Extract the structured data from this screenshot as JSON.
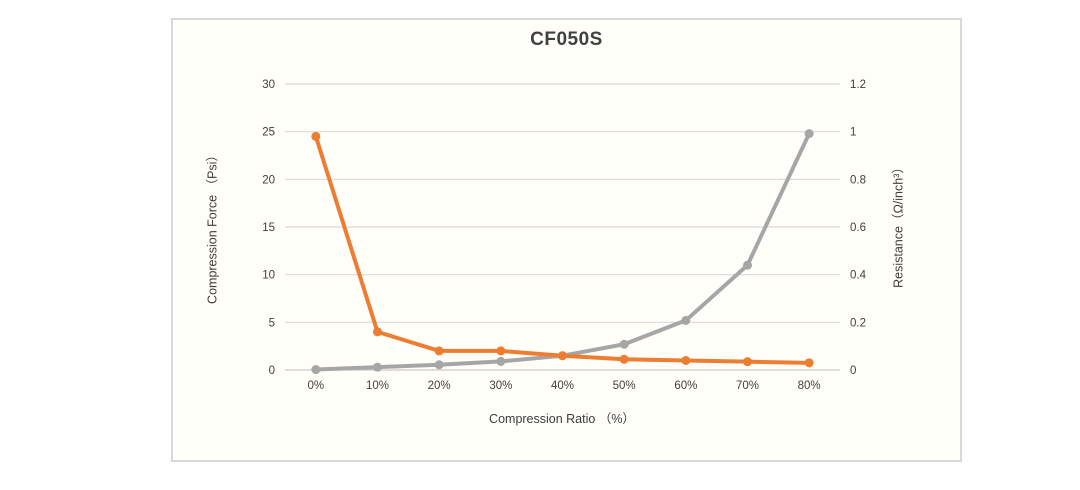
{
  "chart_data": {
    "type": "line",
    "title": "CF050S",
    "xlabel": "Compression Ratio （%）",
    "ylabel_left": "Compression Force （Psi）",
    "ylabel_right": "Resistance（Ω/inch³）",
    "categories": [
      "0%",
      "10%",
      "20%",
      "30%",
      "40%",
      "50%",
      "60%",
      "70%",
      "80%"
    ],
    "series": [
      {
        "id": "compression-force",
        "name": "Compression Force (Psi)",
        "axis": "left",
        "color": "#A6A6A6",
        "values": [
          0.05,
          0.3,
          0.55,
          0.9,
          1.5,
          2.7,
          5.2,
          11,
          24.8
        ]
      },
      {
        "id": "resistance",
        "name": "Resistance (Ω/inch³)",
        "axis": "right",
        "color": "#ED7D31",
        "values": [
          0.98,
          0.16,
          0.08,
          0.08,
          0.06,
          0.045,
          0.04,
          0.035,
          0.03
        ]
      }
    ],
    "axes": {
      "left": {
        "min": 0,
        "max": 30,
        "ticks": [
          "0",
          "5",
          "10",
          "15",
          "20",
          "25",
          "30"
        ]
      },
      "right": {
        "min": 0,
        "max": 1.2,
        "ticks": [
          "0",
          "0.2",
          "0.4",
          "0.6",
          "0.8",
          "1",
          "1.2"
        ]
      }
    },
    "grid": true,
    "legend": "none",
    "colors": {
      "grid": "#D9D9D9",
      "axis": "#C9C9C9",
      "text": "#404040"
    }
  }
}
